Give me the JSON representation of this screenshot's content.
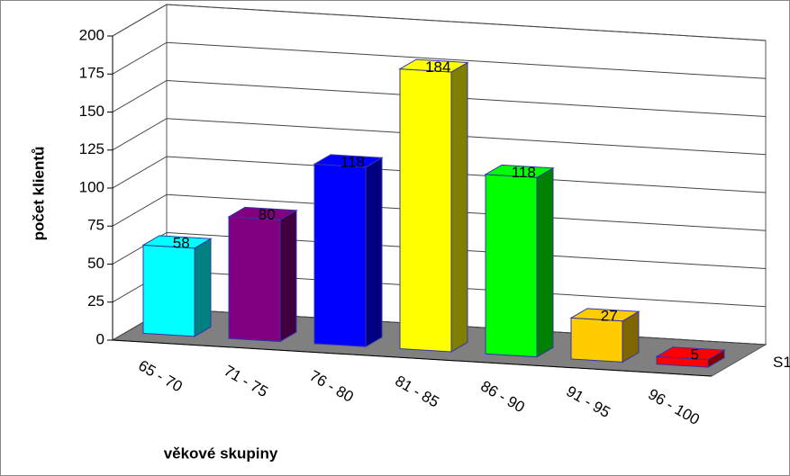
{
  "chart_data": {
    "type": "bar3d",
    "categories": [
      "65 - 70",
      "71 - 75",
      "76 - 80",
      "81 - 85",
      "86 - 90",
      "91 - 95",
      "96 - 100"
    ],
    "series": [
      {
        "name": "S1",
        "values": [
          58,
          80,
          118,
          184,
          118,
          27,
          5
        ],
        "colors": [
          "#00ffff",
          "#800080",
          "#0000ff",
          "#ffff00",
          "#00ff00",
          "#ffcc00",
          "#ff0000"
        ]
      }
    ],
    "ylim": [
      0,
      200
    ],
    "yticks": [
      0,
      25,
      50,
      75,
      100,
      125,
      150,
      175,
      200
    ],
    "grid": true,
    "ylabel": "počet klientů",
    "xlabel": "věkové skupiny"
  }
}
